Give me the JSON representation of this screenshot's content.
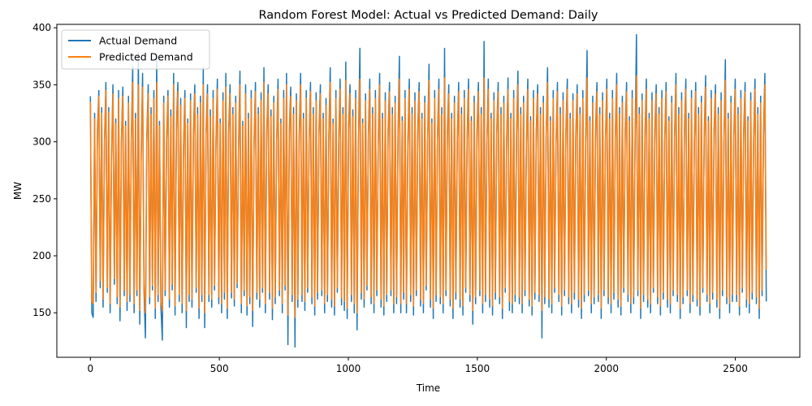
{
  "chart_data": {
    "type": "line",
    "title": "Random Forest Model: Actual vs Predicted Demand: Daily",
    "xlabel": "Time",
    "ylabel": "MW",
    "xlim": [
      -130,
      2750
    ],
    "ylim": [
      111,
      403
    ],
    "xticks": [
      0,
      500,
      1000,
      1500,
      2000,
      2500
    ],
    "yticks": [
      150,
      200,
      250,
      300,
      350,
      400
    ],
    "grid": false,
    "legend_position": "top-left",
    "series": [
      {
        "name": "Actual Demand",
        "color": "#1f77b4",
        "x_range": [
          0,
          2620
        ],
        "values": [
          340,
          150,
          146,
          325,
          160,
          310,
          345,
          172,
          330,
          155,
          300,
          352,
          168,
          330,
          150,
          288,
          350,
          175,
          320,
          158,
          345,
          143,
          300,
          348,
          165,
          318,
          152,
          340,
          160,
          302,
          366,
          150,
          325,
          165,
          378,
          140,
          290,
          360,
          170,
          128,
          305,
          350,
          158,
          330,
          170,
          345,
          145,
          375,
          160,
          318,
          155,
          126,
          340,
          165,
          300,
          345,
          155,
          328,
          170,
          360,
          148,
          315,
          352,
          160,
          338,
          150,
          295,
          345,
          137,
          320,
          160,
          342,
          155,
          305,
          350,
          168,
          330,
          145,
          340,
          160,
          365,
          137,
          310,
          350,
          160,
          328,
          155,
          345,
          170,
          300,
          355,
          158,
          320,
          150,
          343,
          162,
          360,
          145,
          310,
          350,
          163,
          330,
          156,
          340,
          172,
          295,
          362,
          150,
          318,
          165,
          350,
          148,
          325,
          158,
          345,
          138,
          300,
          352,
          162,
          330,
          155,
          343,
          168,
          365,
          150,
          310,
          350,
          162,
          328,
          144,
          340,
          158,
          300,
          355,
          165,
          320,
          150,
          345,
          170,
          360,
          122,
          310,
          348,
          160,
          330,
          120,
          342,
          155,
          305,
          360,
          160,
          325,
          152,
          345,
          168,
          300,
          352,
          158,
          330,
          148,
          343,
          162,
          310,
          350,
          165,
          325,
          150,
          338,
          160,
          305,
          365,
          155,
          320,
          148,
          345,
          168,
          300,
          355,
          157,
          330,
          152,
          370,
          145,
          315,
          350,
          160,
          328,
          150,
          345,
          135,
          300,
          382,
          162,
          320,
          155,
          342,
          170,
          305,
          355,
          158,
          330,
          150,
          345,
          165,
          300,
          360,
          155,
          325,
          148,
          343,
          160,
          310,
          352,
          165,
          330,
          150,
          340,
          158,
          305,
          375,
          150,
          322,
          162,
          345,
          150,
          300,
          355,
          160,
          330,
          148,
          343,
          165,
          310,
          352,
          156,
          325,
          150,
          340,
          170,
          300,
          368,
          155,
          320,
          145,
          345,
          160,
          305,
          355,
          158,
          330,
          150,
          382,
          165,
          310,
          350,
          156,
          325,
          145,
          340,
          162,
          300,
          352,
          155,
          330,
          148,
          345,
          168,
          305,
          355,
          160,
          322,
          140,
          340,
          158,
          310,
          352,
          165,
          330,
          150,
          388,
          160,
          300,
          355,
          155,
          325,
          148,
          343,
          162,
          310,
          352,
          158,
          330,
          145,
          340,
          168,
          302,
          356,
          152,
          325,
          150,
          345,
          160,
          305,
          362,
          158,
          330,
          150,
          340,
          165,
          300,
          355,
          156,
          322,
          148,
          345,
          162,
          310,
          350,
          160,
          330,
          128,
          340,
          158,
          305,
          365,
          155,
          322,
          150,
          345,
          168,
          300,
          352,
          160,
          330,
          148,
          343,
          165,
          310,
          355,
          158,
          325,
          150,
          342,
          162,
          305,
          350,
          155,
          330,
          145,
          345,
          160,
          300,
          380,
          165,
          322,
          150,
          340,
          158,
          310,
          352,
          160,
          330,
          145,
          343,
          165,
          300,
          355,
          158,
          325,
          150,
          345,
          162,
          305,
          360,
          155,
          330,
          148,
          340,
          168,
          310,
          352,
          160,
          322,
          150,
          345,
          158,
          300,
          394,
          165,
          330,
          145,
          342,
          160,
          305,
          355,
          155,
          325,
          150,
          343,
          168,
          310,
          350,
          158,
          330,
          148,
          345,
          162,
          300,
          352,
          155,
          322,
          150,
          340,
          165,
          305,
          360,
          160,
          330,
          145,
          343,
          158,
          310,
          355,
          165,
          325,
          150,
          345,
          160,
          300,
          352,
          156,
          330,
          148,
          340,
          168,
          305,
          358,
          160,
          322,
          150,
          345,
          162,
          310,
          350,
          155,
          330,
          145,
          343,
          165,
          300,
          372,
          158,
          325,
          150,
          340,
          160,
          305,
          355,
          160,
          330,
          148,
          345,
          168,
          310,
          352,
          155,
          322,
          150,
          343,
          162,
          300,
          355,
          158,
          330,
          145,
          340,
          165,
          305,
          360,
          160
        ]
      },
      {
        "name": "Predicted Demand",
        "color": "#ff7f0e",
        "x_range": [
          0,
          2620
        ],
        "values": [
          335,
          160,
          158,
          320,
          168,
          305,
          340,
          178,
          325,
          162,
          298,
          345,
          172,
          326,
          158,
          286,
          342,
          180,
          316,
          164,
          338,
          155,
          298,
          340,
          170,
          314,
          160,
          334,
          166,
          300,
          352,
          158,
          320,
          170,
          350,
          152,
          288,
          348,
          174,
          150,
          300,
          342,
          164,
          324,
          174,
          338,
          154,
          352,
          166,
          314,
          160,
          152,
          334,
          170,
          298,
          340,
          162,
          322,
          175,
          350,
          156,
          310,
          344,
          166,
          332,
          158,
          292,
          338,
          152,
          316,
          166,
          336,
          162,
          302,
          342,
          172,
          324,
          154,
          334,
          166,
          350,
          150,
          306,
          342,
          166,
          322,
          162,
          338,
          174,
          298,
          346,
          164,
          316,
          158,
          336,
          168,
          348,
          154,
          306,
          342,
          168,
          324,
          162,
          334,
          176,
          292,
          350,
          158,
          314,
          170,
          342,
          156,
          320,
          164,
          338,
          152,
          298,
          344,
          168,
          324,
          162,
          336,
          172,
          352,
          158,
          306,
          342,
          168,
          322,
          154,
          334,
          164,
          298,
          346,
          170,
          316,
          158,
          338,
          174,
          350,
          148,
          306,
          340,
          166,
          324,
          146,
          336,
          162,
          302,
          350,
          166,
          320,
          160,
          338,
          172,
          298,
          344,
          164,
          324,
          156,
          336,
          168,
          306,
          342,
          170,
          320,
          158,
          332,
          166,
          302,
          352,
          162,
          316,
          156,
          338,
          172,
          298,
          346,
          163,
          324,
          160,
          354,
          154,
          310,
          342,
          166,
          322,
          158,
          338,
          150,
          298,
          355,
          168,
          316,
          162,
          336,
          174,
          302,
          346,
          164,
          324,
          158,
          338,
          170,
          298,
          350,
          162,
          320,
          156,
          336,
          166,
          306,
          344,
          170,
          324,
          158,
          334,
          164,
          302,
          355,
          158,
          318,
          168,
          338,
          158,
          298,
          346,
          166,
          324,
          156,
          336,
          170,
          306,
          344,
          162,
          320,
          158,
          334,
          174,
          298,
          354,
          162,
          316,
          154,
          338,
          166,
          302,
          346,
          164,
          324,
          158,
          356,
          170,
          306,
          342,
          162,
          320,
          154,
          334,
          168,
          298,
          344,
          162,
          324,
          156,
          338,
          172,
          302,
          346,
          166,
          318,
          152,
          334,
          164,
          306,
          344,
          170,
          324,
          158,
          356,
          166,
          298,
          346,
          162,
          320,
          156,
          336,
          168,
          306,
          344,
          164,
          324,
          154,
          334,
          172,
          300,
          346,
          160,
          320,
          158,
          338,
          166,
          302,
          350,
          164,
          324,
          158,
          334,
          170,
          298,
          346,
          162,
          318,
          156,
          338,
          168,
          306,
          342,
          166,
          324,
          152,
          334,
          164,
          302,
          352,
          162,
          318,
          158,
          338,
          172,
          298,
          344,
          166,
          324,
          156,
          336,
          170,
          306,
          346,
          164,
          320,
          158,
          336,
          168,
          302,
          342,
          162,
          324,
          154,
          338,
          166,
          298,
          356,
          170,
          318,
          158,
          334,
          164,
          306,
          344,
          166,
          324,
          154,
          336,
          170,
          298,
          346,
          164,
          320,
          158,
          338,
          168,
          302,
          350,
          162,
          324,
          156,
          334,
          172,
          306,
          344,
          166,
          318,
          158,
          338,
          164,
          298,
          358,
          170,
          324,
          154,
          336,
          166,
          302,
          346,
          162,
          320,
          158,
          336,
          172,
          306,
          342,
          164,
          324,
          156,
          338,
          168,
          298,
          344,
          162,
          318,
          158,
          334,
          170,
          302,
          350,
          166,
          324,
          154,
          336,
          164,
          306,
          346,
          170,
          320,
          158,
          338,
          166,
          298,
          344,
          162,
          324,
          156,
          334,
          172,
          302,
          348,
          166,
          318,
          158,
          338,
          168,
          306,
          342,
          162,
          324,
          154,
          336,
          170,
          298,
          354,
          164,
          320,
          158,
          334,
          166,
          302,
          346,
          166,
          324,
          156,
          338,
          172,
          306,
          344,
          162,
          318,
          158,
          336,
          168,
          298,
          346,
          164,
          324,
          154,
          334,
          170,
          302,
          350,
          188
        ]
      }
    ]
  }
}
